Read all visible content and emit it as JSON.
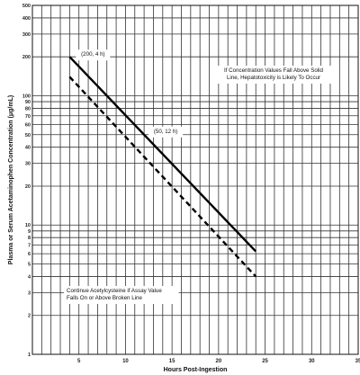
{
  "chart_data": {
    "type": "line",
    "ylabel": "Plasma or Serum Acetaminophen Concentration (μg/mL)",
    "xlabel": "Hours Post-Ingestion",
    "y_scale": "log",
    "ylim": [
      1,
      500
    ],
    "xlim": [
      0,
      35
    ],
    "grid": true,
    "yticks": [
      1,
      2,
      3,
      4,
      5,
      6,
      7,
      8,
      9,
      10,
      20,
      30,
      40,
      50,
      60,
      70,
      80,
      90,
      100,
      200,
      300,
      400,
      500
    ],
    "xticks": [
      5,
      10,
      15,
      20,
      25,
      30,
      35
    ],
    "xtick_labels": [
      "5",
      "10",
      "15",
      "20",
      "25",
      "30",
      "35"
    ],
    "series": [
      {
        "style": "solid",
        "color": "#000000",
        "x": [
          4,
          24
        ],
        "y": [
          200,
          6.25
        ]
      },
      {
        "style": "dashed",
        "color": "#000000",
        "x": [
          4,
          24
        ],
        "y": [
          140,
          4
        ]
      }
    ],
    "point_labels": [
      {
        "text": "(200, 4 h)",
        "x": 4,
        "y": 200
      },
      {
        "text": "(50, 12 h)",
        "x": 12,
        "y": 50
      }
    ],
    "annotations": [
      {
        "lines": [
          "If Concentration Values Fall Above Solid",
          "Line, Hepatotoxicity is Likely To Occur"
        ]
      },
      {
        "lines": [
          "Continue Acetylcysteine if Assay Value",
          "Falls On or Above Broken Line"
        ]
      }
    ]
  }
}
